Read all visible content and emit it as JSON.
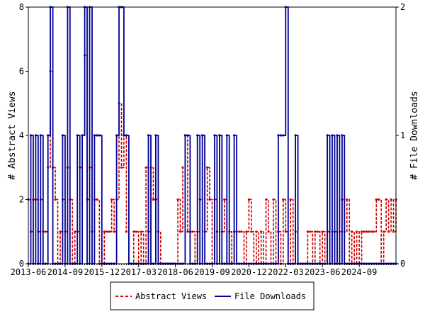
{
  "chart_data": {
    "type": "line",
    "xlabel": "",
    "ylabel_left": "# Abstract Views",
    "ylabel_right": "# File Downloads",
    "ylim_left": [
      0,
      8
    ],
    "ylim_right": [
      0,
      2
    ],
    "y_ticks_left": [
      "0",
      "2",
      "4",
      "6",
      "8"
    ],
    "y_ticks_right": [
      "0",
      "1",
      "2"
    ],
    "x_start": "2013-06",
    "x_end": "2025-12",
    "x_ticks": [
      "2013-06",
      "2014-09",
      "2015-12",
      "2017-03",
      "2018-06",
      "2019-09",
      "2020-12",
      "2022-03",
      "2023-06",
      "2024-09"
    ],
    "grid": false,
    "legend_position": "bottom-center",
    "series": [
      {
        "name": "Abstract Views",
        "color": "#cc0000",
        "axis": "left",
        "style": "dashed",
        "points": [
          [
            "2013-06",
            2
          ],
          [
            "2013-07",
            1
          ],
          [
            "2013-08",
            2
          ],
          [
            "2013-09",
            2
          ],
          [
            "2013-10",
            1
          ],
          [
            "2013-11",
            2
          ],
          [
            "2013-12",
            1
          ],
          [
            "2014-01",
            1
          ],
          [
            "2014-02",
            3
          ],
          [
            "2014-03",
            6
          ],
          [
            "2014-04",
            3
          ],
          [
            "2014-05",
            2
          ],
          [
            "2014-06",
            0
          ],
          [
            "2014-07",
            1
          ],
          [
            "2014-08",
            2
          ],
          [
            "2014-09",
            1
          ],
          [
            "2014-10",
            3
          ],
          [
            "2014-11",
            2
          ],
          [
            "2014-12",
            0
          ],
          [
            "2015-01",
            1
          ],
          [
            "2015-02",
            1
          ],
          [
            "2015-03",
            3
          ],
          [
            "2015-04",
            4
          ],
          [
            "2015-05",
            6.5
          ],
          [
            "2015-06",
            2
          ],
          [
            "2015-07",
            3
          ],
          [
            "2015-08",
            1
          ],
          [
            "2015-09",
            2
          ],
          [
            "2015-10",
            2
          ],
          [
            "2015-11",
            0
          ],
          [
            "2015-12",
            0
          ],
          [
            "2016-01",
            1
          ],
          [
            "2016-02",
            1
          ],
          [
            "2016-03",
            1
          ],
          [
            "2016-04",
            2
          ],
          [
            "2016-05",
            1
          ],
          [
            "2016-06",
            2
          ],
          [
            "2016-07",
            5
          ],
          [
            "2016-08",
            3
          ],
          [
            "2016-09",
            4
          ],
          [
            "2016-10",
            1
          ],
          [
            "2016-11",
            0
          ],
          [
            "2016-12",
            0
          ],
          [
            "2017-01",
            1
          ],
          [
            "2017-02",
            1
          ],
          [
            "2017-03",
            0
          ],
          [
            "2017-04",
            1
          ],
          [
            "2017-05",
            0
          ],
          [
            "2017-06",
            3
          ],
          [
            "2017-07",
            1
          ],
          [
            "2017-08",
            3
          ],
          [
            "2017-09",
            2
          ],
          [
            "2017-10",
            2
          ],
          [
            "2017-11",
            1
          ],
          [
            "2017-12",
            0
          ],
          [
            "2018-01",
            0
          ],
          [
            "2018-02",
            0
          ],
          [
            "2018-03",
            0
          ],
          [
            "2018-04",
            0
          ],
          [
            "2018-05",
            0
          ],
          [
            "2018-06",
            0
          ],
          [
            "2018-07",
            2
          ],
          [
            "2018-08",
            1
          ],
          [
            "2018-09",
            3
          ],
          [
            "2018-10",
            4
          ],
          [
            "2018-11",
            1
          ],
          [
            "2018-12",
            1
          ],
          [
            "2019-01",
            1
          ],
          [
            "2019-02",
            0
          ],
          [
            "2019-03",
            1
          ],
          [
            "2019-04",
            2
          ],
          [
            "2019-05",
            4
          ],
          [
            "2019-06",
            1
          ],
          [
            "2019-07",
            3
          ],
          [
            "2019-08",
            2
          ],
          [
            "2019-09",
            0
          ],
          [
            "2019-10",
            2
          ],
          [
            "2019-11",
            1
          ],
          [
            "2019-12",
            4
          ],
          [
            "2020-01",
            1
          ],
          [
            "2020-02",
            2
          ],
          [
            "2020-03",
            0
          ],
          [
            "2020-04",
            1
          ],
          [
            "2020-05",
            0
          ],
          [
            "2020-06",
            1
          ],
          [
            "2020-07",
            1
          ],
          [
            "2020-08",
            1
          ],
          [
            "2020-09",
            1
          ],
          [
            "2020-10",
            0
          ],
          [
            "2020-11",
            1
          ],
          [
            "2020-12",
            2
          ],
          [
            "2021-01",
            1
          ],
          [
            "2021-02",
            0
          ],
          [
            "2021-03",
            1
          ],
          [
            "2021-04",
            0
          ],
          [
            "2021-05",
            1
          ],
          [
            "2021-06",
            0
          ],
          [
            "2021-07",
            2
          ],
          [
            "2021-08",
            1
          ],
          [
            "2021-09",
            0
          ],
          [
            "2021-10",
            2
          ],
          [
            "2021-11",
            0
          ],
          [
            "2021-12",
            1
          ],
          [
            "2022-01",
            0
          ],
          [
            "2022-02",
            2
          ],
          [
            "2022-03",
            1
          ],
          [
            "2022-04",
            0
          ],
          [
            "2022-05",
            2
          ],
          [
            "2022-06",
            0
          ],
          [
            "2022-07",
            1
          ],
          [
            "2022-08",
            0
          ],
          [
            "2022-09",
            0
          ],
          [
            "2022-10",
            0
          ],
          [
            "2022-11",
            0
          ],
          [
            "2022-12",
            1
          ],
          [
            "2023-01",
            1
          ],
          [
            "2023-02",
            0
          ],
          [
            "2023-03",
            1
          ],
          [
            "2023-04",
            1
          ],
          [
            "2023-05",
            0
          ],
          [
            "2023-06",
            1
          ],
          [
            "2023-07",
            0
          ],
          [
            "2023-08",
            1
          ],
          [
            "2023-09",
            0
          ],
          [
            "2023-10",
            1
          ],
          [
            "2023-11",
            1
          ],
          [
            "2023-12",
            0
          ],
          [
            "2024-01",
            1
          ],
          [
            "2024-02",
            2
          ],
          [
            "2024-03",
            1
          ],
          [
            "2024-04",
            2
          ],
          [
            "2024-05",
            0
          ],
          [
            "2024-06",
            1
          ],
          [
            "2024-07",
            0
          ],
          [
            "2024-08",
            1
          ],
          [
            "2024-09",
            0
          ],
          [
            "2024-10",
            1
          ],
          [
            "2024-11",
            1
          ],
          [
            "2024-12",
            1
          ],
          [
            "2025-01",
            1
          ],
          [
            "2025-02",
            1
          ],
          [
            "2025-03",
            1
          ],
          [
            "2025-04",
            2
          ],
          [
            "2025-05",
            2
          ],
          [
            "2025-06",
            0
          ],
          [
            "2025-07",
            1
          ],
          [
            "2025-08",
            2
          ],
          [
            "2025-09",
            1
          ],
          [
            "2025-10",
            2
          ],
          [
            "2025-11",
            1
          ],
          [
            "2025-12",
            2
          ]
        ]
      },
      {
        "name": "File Downloads",
        "color": "#000099",
        "axis": "right",
        "style": "solid",
        "points": [
          [
            "2013-06",
            0
          ],
          [
            "2013-07",
            1
          ],
          [
            "2013-08",
            0
          ],
          [
            "2013-09",
            1
          ],
          [
            "2013-10",
            0
          ],
          [
            "2013-11",
            1
          ],
          [
            "2013-12",
            0
          ],
          [
            "2014-01",
            0
          ],
          [
            "2014-02",
            1
          ],
          [
            "2014-03",
            2
          ],
          [
            "2014-04",
            0
          ],
          [
            "2014-05",
            0
          ],
          [
            "2014-06",
            0
          ],
          [
            "2014-07",
            0
          ],
          [
            "2014-08",
            1
          ],
          [
            "2014-09",
            0
          ],
          [
            "2014-10",
            2
          ],
          [
            "2014-11",
            0
          ],
          [
            "2014-12",
            0
          ],
          [
            "2015-01",
            0
          ],
          [
            "2015-02",
            1
          ],
          [
            "2015-03",
            0
          ],
          [
            "2015-04",
            1
          ],
          [
            "2015-05",
            2
          ],
          [
            "2015-06",
            0
          ],
          [
            "2015-07",
            2
          ],
          [
            "2015-08",
            0
          ],
          [
            "2015-09",
            1
          ],
          [
            "2015-10",
            1
          ],
          [
            "2015-11",
            1
          ],
          [
            "2015-12",
            0
          ],
          [
            "2016-01",
            0
          ],
          [
            "2016-02",
            0
          ],
          [
            "2016-03",
            0
          ],
          [
            "2016-04",
            0
          ],
          [
            "2016-05",
            0
          ],
          [
            "2016-06",
            1
          ],
          [
            "2016-07",
            2
          ],
          [
            "2016-08",
            2
          ],
          [
            "2016-09",
            1
          ],
          [
            "2016-10",
            1
          ],
          [
            "2016-11",
            0
          ],
          [
            "2016-12",
            0
          ],
          [
            "2017-01",
            0
          ],
          [
            "2017-02",
            0
          ],
          [
            "2017-03",
            0
          ],
          [
            "2017-04",
            0
          ],
          [
            "2017-05",
            0
          ],
          [
            "2017-06",
            0
          ],
          [
            "2017-07",
            1
          ],
          [
            "2017-08",
            0
          ],
          [
            "2017-09",
            0
          ],
          [
            "2017-10",
            1
          ],
          [
            "2017-11",
            0
          ],
          [
            "2017-12",
            0
          ],
          [
            "2018-01",
            0
          ],
          [
            "2018-02",
            0
          ],
          [
            "2018-03",
            0
          ],
          [
            "2018-04",
            0
          ],
          [
            "2018-05",
            0
          ],
          [
            "2018-06",
            0
          ],
          [
            "2018-07",
            0
          ],
          [
            "2018-08",
            0
          ],
          [
            "2018-09",
            0
          ],
          [
            "2018-10",
            1
          ],
          [
            "2018-11",
            1
          ],
          [
            "2018-12",
            0
          ],
          [
            "2019-01",
            0
          ],
          [
            "2019-02",
            0
          ],
          [
            "2019-03",
            1
          ],
          [
            "2019-04",
            0
          ],
          [
            "2019-05",
            1
          ],
          [
            "2019-06",
            0
          ],
          [
            "2019-07",
            0
          ],
          [
            "2019-08",
            0
          ],
          [
            "2019-09",
            0
          ],
          [
            "2019-10",
            1
          ],
          [
            "2019-11",
            0
          ],
          [
            "2019-12",
            1
          ],
          [
            "2020-01",
            0
          ],
          [
            "2020-02",
            0
          ],
          [
            "2020-03",
            1
          ],
          [
            "2020-04",
            0
          ],
          [
            "2020-05",
            0
          ],
          [
            "2020-06",
            1
          ],
          [
            "2020-07",
            0
          ],
          [
            "2020-08",
            0
          ],
          [
            "2020-09",
            0
          ],
          [
            "2020-10",
            0
          ],
          [
            "2020-11",
            0
          ],
          [
            "2020-12",
            0
          ],
          [
            "2021-01",
            0
          ],
          [
            "2021-02",
            0
          ],
          [
            "2021-03",
            0
          ],
          [
            "2021-04",
            0
          ],
          [
            "2021-05",
            0
          ],
          [
            "2021-06",
            0
          ],
          [
            "2021-07",
            0
          ],
          [
            "2021-08",
            0
          ],
          [
            "2021-09",
            0
          ],
          [
            "2021-10",
            0
          ],
          [
            "2021-11",
            0
          ],
          [
            "2021-12",
            1
          ],
          [
            "2022-01",
            1
          ],
          [
            "2022-02",
            1
          ],
          [
            "2022-03",
            2
          ],
          [
            "2022-04",
            0
          ],
          [
            "2022-05",
            0
          ],
          [
            "2022-06",
            0
          ],
          [
            "2022-07",
            1
          ],
          [
            "2022-08",
            0
          ],
          [
            "2022-09",
            0
          ],
          [
            "2022-10",
            0
          ],
          [
            "2022-11",
            0
          ],
          [
            "2022-12",
            0
          ],
          [
            "2023-01",
            0
          ],
          [
            "2023-02",
            0
          ],
          [
            "2023-03",
            0
          ],
          [
            "2023-04",
            0
          ],
          [
            "2023-05",
            0
          ],
          [
            "2023-06",
            0
          ],
          [
            "2023-07",
            0
          ],
          [
            "2023-08",
            1
          ],
          [
            "2023-09",
            0
          ],
          [
            "2023-10",
            1
          ],
          [
            "2023-11",
            0
          ],
          [
            "2023-12",
            1
          ],
          [
            "2024-01",
            0
          ],
          [
            "2024-02",
            1
          ],
          [
            "2024-03",
            0
          ],
          [
            "2024-04",
            0
          ],
          [
            "2024-05",
            0
          ],
          [
            "2024-06",
            0
          ],
          [
            "2024-07",
            0
          ],
          [
            "2024-08",
            0
          ],
          [
            "2024-09",
            0
          ],
          [
            "2024-10",
            0
          ],
          [
            "2024-11",
            0
          ],
          [
            "2024-12",
            0
          ],
          [
            "2025-01",
            0
          ],
          [
            "2025-02",
            0
          ],
          [
            "2025-03",
            0
          ],
          [
            "2025-04",
            0
          ],
          [
            "2025-05",
            0
          ],
          [
            "2025-06",
            0
          ],
          [
            "2025-07",
            0
          ],
          [
            "2025-08",
            0
          ],
          [
            "2025-09",
            0
          ],
          [
            "2025-10",
            0
          ],
          [
            "2025-11",
            0
          ],
          [
            "2025-12",
            0
          ]
        ]
      }
    ]
  }
}
